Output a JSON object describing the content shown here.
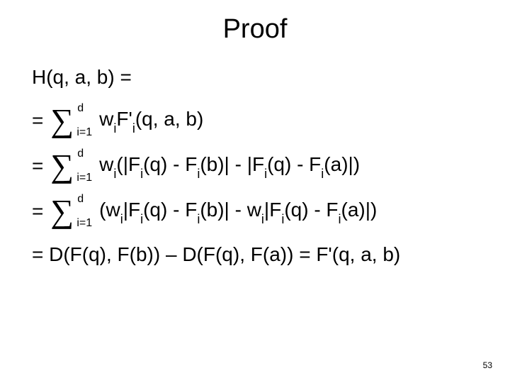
{
  "title": "Proof",
  "line1": "H(q, a, b) =",
  "sum_upper": "d",
  "sum_lower": "i=1",
  "expr1_a": "w",
  "expr1_b": "i",
  "expr1_c": "F'",
  "expr1_d": "i",
  "expr1_e": "(q, a, b)",
  "expr2_a": "w",
  "expr2_b": "i",
  "expr2_c": "(|F",
  "expr2_d": "i",
  "expr2_e": "(q) - F",
  "expr2_f": "i",
  "expr2_g": "(b)| - |F",
  "expr2_h": "i",
  "expr2_i": "(q) - F",
  "expr2_j": "i",
  "expr2_k": "(a)|)",
  "expr3_a": "(w",
  "expr3_b": "i",
  "expr3_c": "|F",
  "expr3_d": "i",
  "expr3_e": "(q) - F",
  "expr3_f": "i",
  "expr3_g": "(b)| - w",
  "expr3_h": "i",
  "expr3_i": "|F",
  "expr3_j": "i",
  "expr3_k": "(q) - F",
  "expr3_l": "i",
  "expr3_m": "(a)|)",
  "final": "= D(F(q), F(b)) – D(F(q), F(a)) = F'(q, a, b)",
  "equals": "=",
  "page": "53"
}
